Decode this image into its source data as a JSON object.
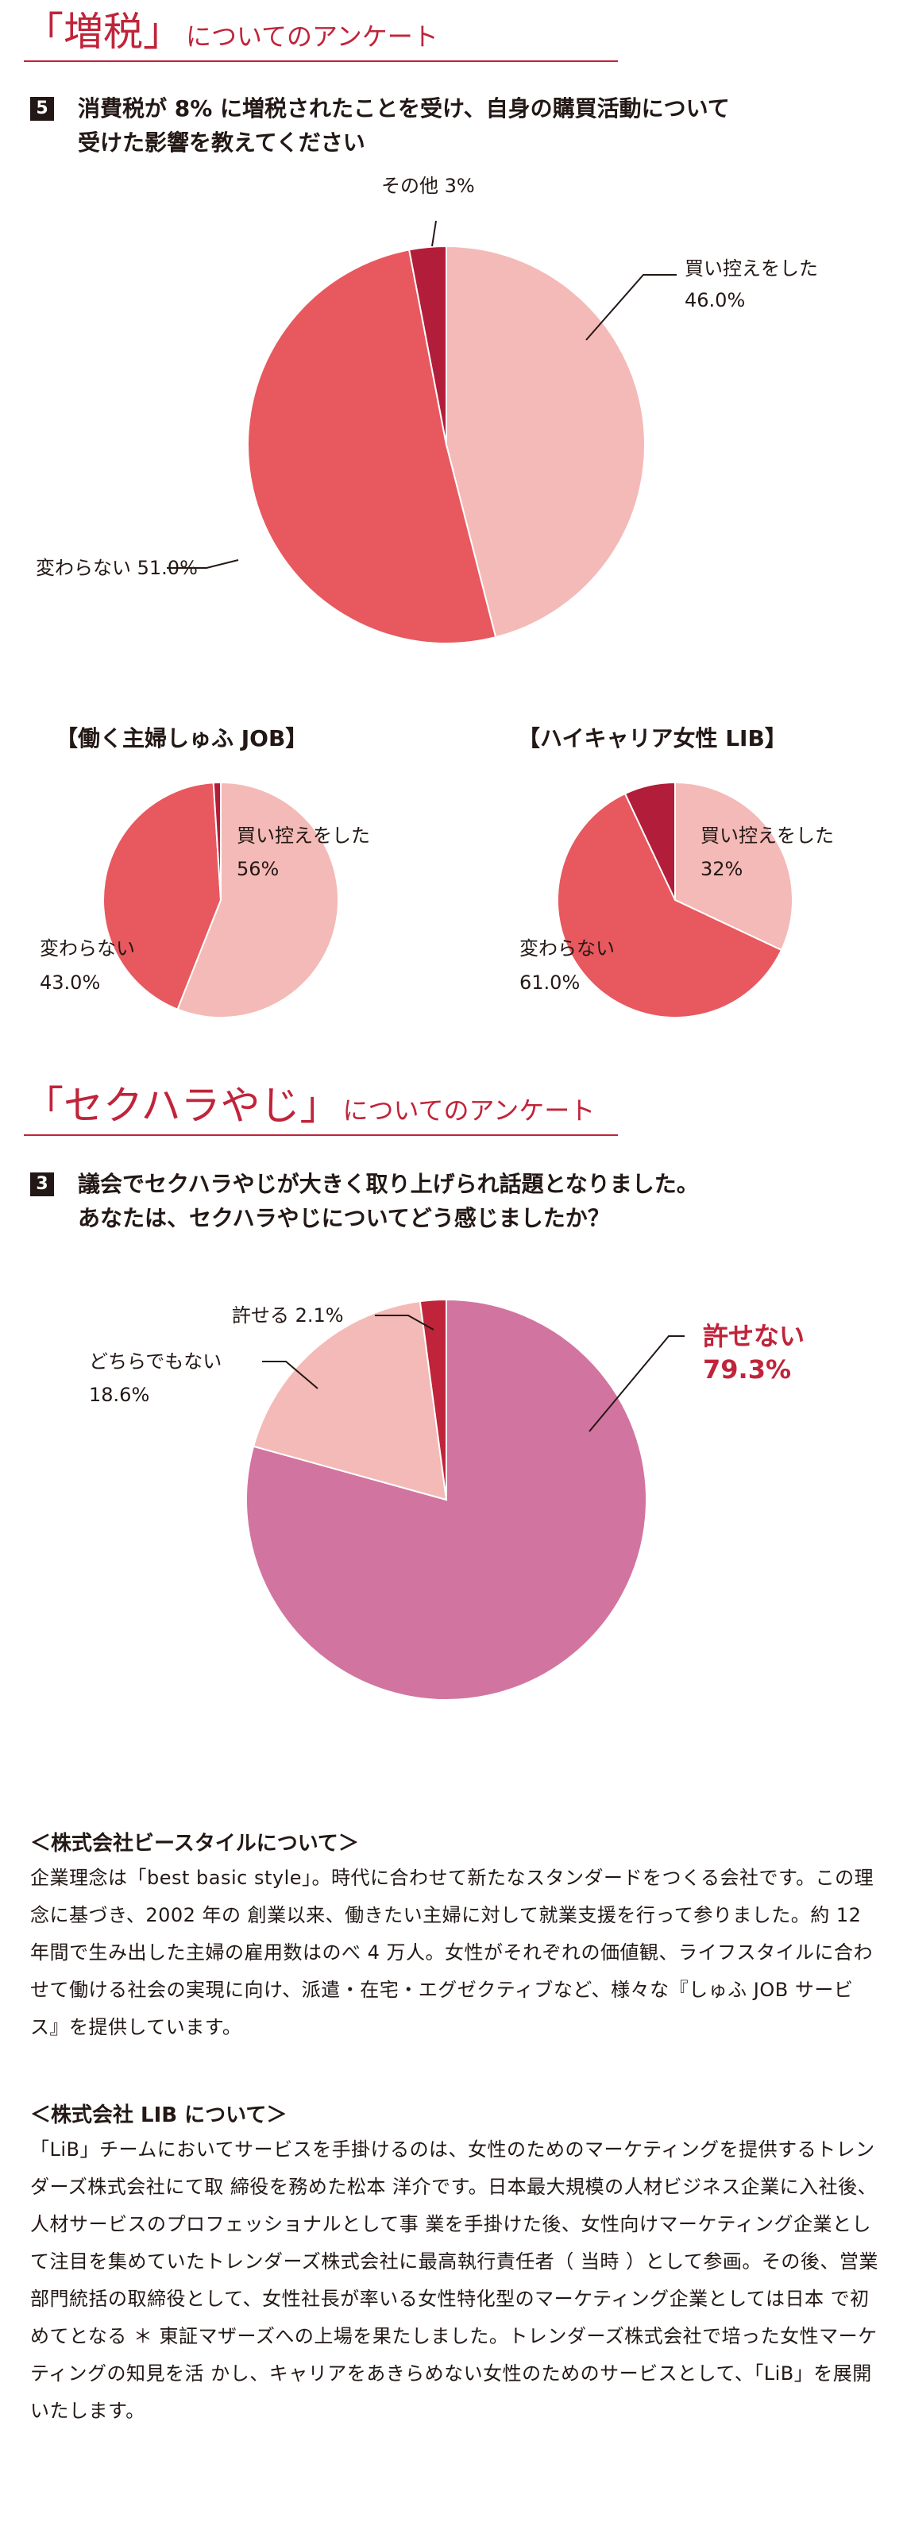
{
  "tax_section": {
    "title_big": "「増税」",
    "title_small": "についてのアンケート",
    "q_number": "5",
    "q_line1": "消費税が 8% に増税されたことを受け、自身の購買活動について",
    "q_line2": "受けた影響を教えてください"
  },
  "harassment_section": {
    "title_big": "「セクハラやじ」",
    "title_small": "についてのアンケート",
    "q_number": "3",
    "q_line1": "議会でセクハラやじが大きく取り上げられ話題となりました。",
    "q_line2": "あなたは、セクハラやじについてどう感じましたか？"
  },
  "chart_data": [
    {
      "type": "pie",
      "title": "",
      "slices": [
        {
          "label": "買い控えをした",
          "value": 46.0,
          "display": "46.0%",
          "color": "#f4bab7"
        },
        {
          "label": "変わらない",
          "value": 51.0,
          "display": "51.0%",
          "color": "#e8585f"
        },
        {
          "label": "その他",
          "value": 3.0,
          "display": "3%",
          "color": "#b21d3a"
        }
      ]
    },
    {
      "type": "pie",
      "title": "【働く主婦しゅふ JOB】",
      "slices": [
        {
          "label": "買い控えをした",
          "value": 56,
          "display": "56%",
          "color": "#f4bab7"
        },
        {
          "label": "変わらない",
          "value": 43.0,
          "display": "43.0%",
          "color": "#e8585f"
        },
        {
          "label": "",
          "value": 1.0,
          "display": "",
          "color": "#b21d3a"
        }
      ]
    },
    {
      "type": "pie",
      "title": "【ハイキャリア女性 LIB】",
      "slices": [
        {
          "label": "買い控えをした",
          "value": 32,
          "display": "32%",
          "color": "#f4bab7"
        },
        {
          "label": "変わらない",
          "value": 61.0,
          "display": "61.0%",
          "color": "#e8585f"
        },
        {
          "label": "",
          "value": 7.0,
          "display": "",
          "color": "#b21d3a"
        }
      ]
    },
    {
      "type": "pie",
      "title": "",
      "slices": [
        {
          "label": "許せない",
          "value": 79.3,
          "display": "79.3%",
          "color": "#d274a0"
        },
        {
          "label": "どちらでもない",
          "value": 18.6,
          "display": "18.6%",
          "color": "#f4bab7"
        },
        {
          "label": "許せる",
          "value": 2.1,
          "display": "2.1%",
          "color": "#c0243a"
        }
      ]
    }
  ],
  "about_bstyle": {
    "heading": "＜株式会社ビースタイルについて＞",
    "body": "企業理念は「best basic style」。時代に合わせて新たなスタンダードをつくる会社です。この理念に基づき、2002 年の 創業以来、働きたい主婦に対して就業支援を行って参りました。約 12 年間で生み出した主婦の雇用数はのべ 4 万人。女性がそれぞれの価値観、ライフスタイルに合わせて働ける社会の実現に向け、派遣・在宅・エグゼクティブなど、様々な『しゅふ JOB サービス』を提供しています。"
  },
  "about_lib": {
    "heading": "＜株式会社 LIB について＞",
    "body": "「LiB」チームにおいてサービスを手掛けるのは、女性のためのマーケティングを提供するトレンダーズ株式会社にて取 締役を務めた松本 洋介です。日本最大規模の人材ビジネス企業に入社後、人材サービスのプロフェッショナルとして事 業を手掛けた後、女性向けマーケティング企業として注目を集めていたトレンダーズ株式会社に最高執行責任者（ 当時 ）として参画。その後、営業部門統括の取締役として、女性社長が率いる女性特化型のマーケティング企業としては日本 で初めてとなる ＊ 東証マザーズへの上場を果たしました。トレンダーズ株式会社で培った女性マーケティングの知見を活 かし、キャリアをあきらめない女性のためのサービスとして、「LiB」を展開いたします。"
  }
}
